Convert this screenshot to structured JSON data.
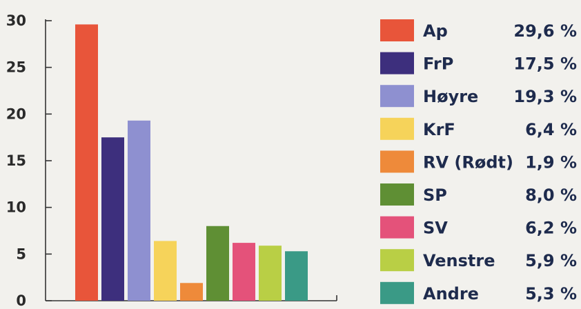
{
  "chart_data": {
    "type": "bar",
    "categories": [
      "Ap",
      "FrP",
      "Høyre",
      "KrF",
      "RV (Rødt)",
      "SP",
      "SV",
      "Venstre",
      "Andre"
    ],
    "values": [
      29.6,
      17.5,
      19.3,
      6.4,
      1.9,
      8.0,
      6.2,
      5.9,
      5.3
    ],
    "value_labels": [
      "29,6 %",
      "17,5 %",
      "19,3 %",
      "6,4 %",
      "1,9 %",
      "8,0 %",
      "6,2 %",
      "5,9 %",
      "5,3 %"
    ],
    "colors": [
      "#e8553a",
      "#3d2f7d",
      "#8e90d0",
      "#f6d35a",
      "#ee8a3a",
      "#5f8f34",
      "#e4527a",
      "#b9cf45",
      "#3a9a86"
    ],
    "ylim": [
      0,
      30
    ],
    "yticks": [
      0,
      5,
      10,
      15,
      20,
      25,
      30
    ],
    "ytick_labels": [
      "0",
      "5",
      "10",
      "15",
      "20",
      "25",
      "30"
    ],
    "grid": false,
    "legend_position": "right"
  }
}
